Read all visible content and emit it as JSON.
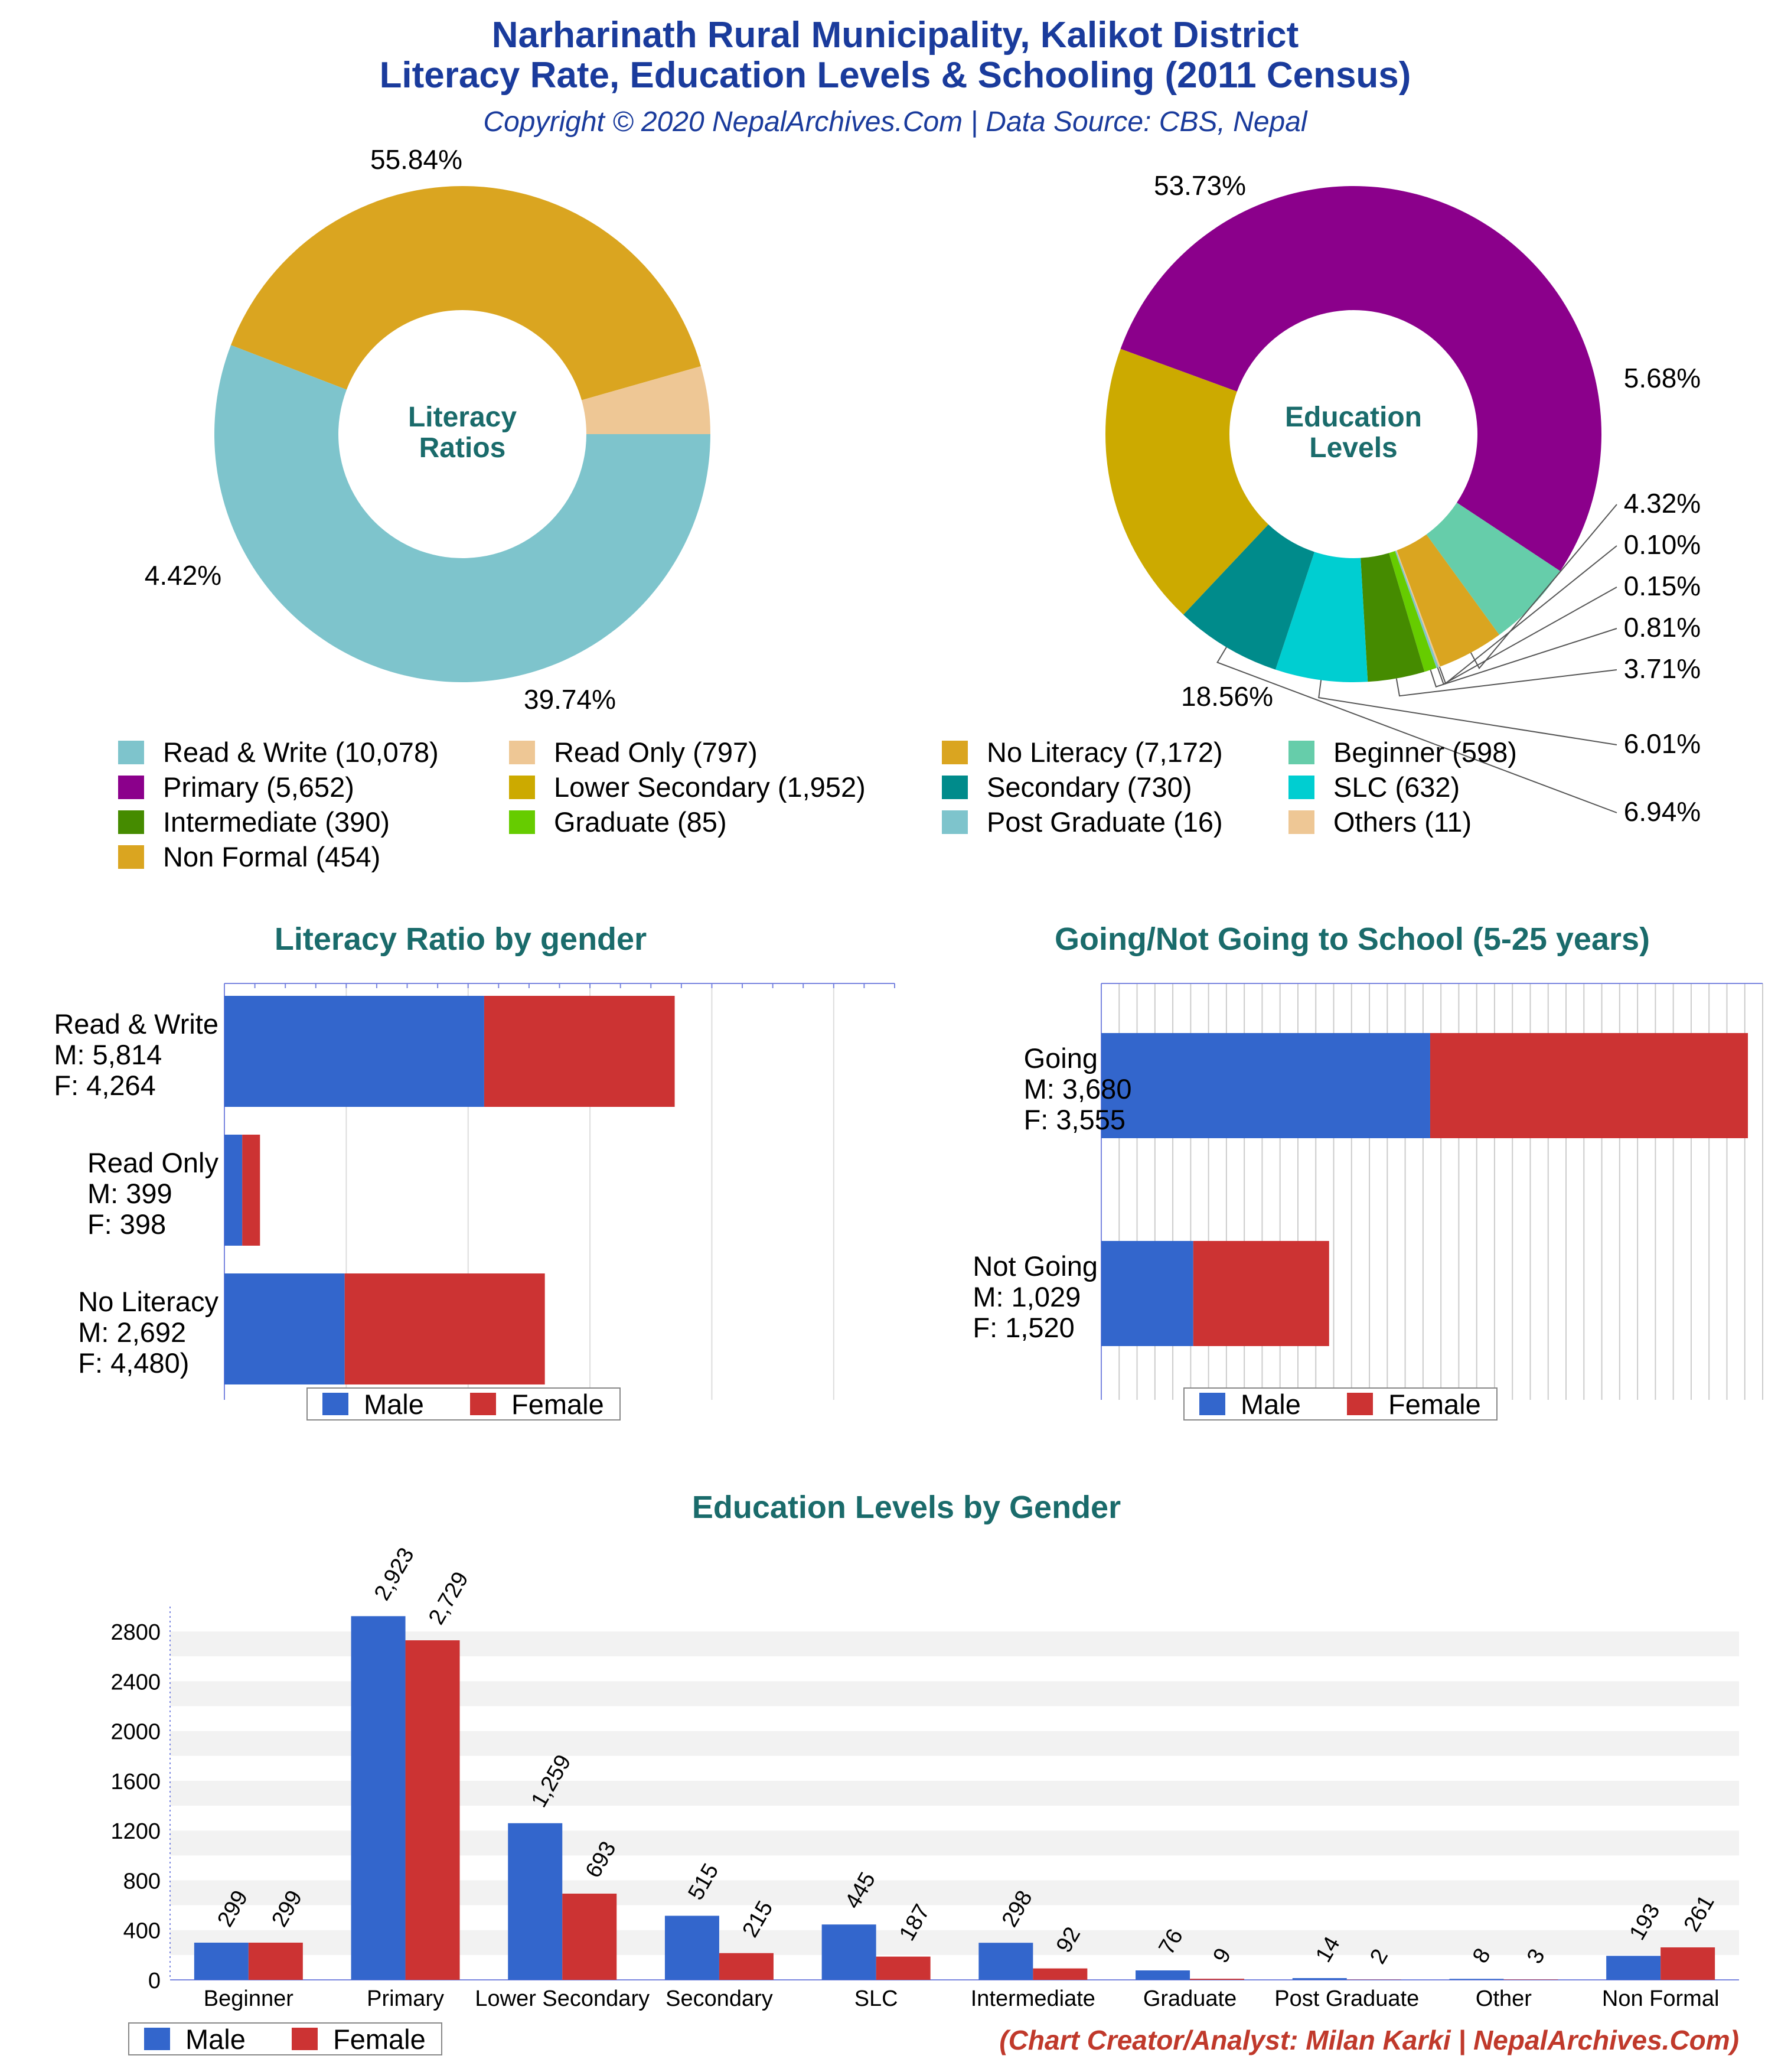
{
  "header": {
    "title_line1": "Narharinath Rural Municipality, Kalikot District",
    "title_line2": "Literacy Rate, Education Levels & Schooling (2011 Census)",
    "subtitle": "Copyright © 2020 NepalArchives.Com | Data Source: CBS, Nepal"
  },
  "colors": {
    "male": "#3366cc",
    "female": "#cc3333",
    "title": "#1a3b9c",
    "section": "#1a6b6b",
    "credit": "#c0392b"
  },
  "legend_labels": {
    "male": "Male",
    "female": "Female"
  },
  "chart_data": [
    {
      "type": "pie",
      "center_label": [
        "Literacy",
        "Ratios"
      ],
      "slices": [
        {
          "name": "Read & Write",
          "value": 10078,
          "percent_label": "55.84%",
          "color": "#7ec4cc"
        },
        {
          "name": "No Literacy",
          "value": 7172,
          "percent_label": "39.74%",
          "color": "#daa520"
        },
        {
          "name": "Read Only",
          "value": 797,
          "percent_label": "4.42%",
          "color": "#eec795"
        }
      ]
    },
    {
      "type": "pie",
      "center_label": [
        "Education",
        "Levels"
      ],
      "slices": [
        {
          "name": "Primary",
          "value": 5652,
          "percent_label": "53.73%",
          "color": "#8b008b"
        },
        {
          "name": "Beginner",
          "value": 598,
          "percent_label": "5.68%",
          "color": "#66cdaa"
        },
        {
          "name": "Non Formal",
          "value": 454,
          "percent_label": "4.32%",
          "color": "#daa520"
        },
        {
          "name": "Others",
          "value": 11,
          "percent_label": "0.10%",
          "color": "#eec795"
        },
        {
          "name": "Post Graduate",
          "value": 16,
          "percent_label": "0.15%",
          "color": "#7ec4cc"
        },
        {
          "name": "Graduate",
          "value": 85,
          "percent_label": "0.81%",
          "color": "#66cc00"
        },
        {
          "name": "Intermediate",
          "value": 390,
          "percent_label": "3.71%",
          "color": "#458b00"
        },
        {
          "name": "SLC",
          "value": 632,
          "percent_label": "6.01%",
          "color": "#00ced1"
        },
        {
          "name": "Secondary",
          "value": 730,
          "percent_label": "6.94%",
          "color": "#008b8b"
        },
        {
          "name": "Lower Secondary",
          "value": 1952,
          "percent_label": "18.56%",
          "color": "#ccaa00"
        }
      ]
    },
    {
      "type": "bar",
      "orientation": "horizontal",
      "stacked": true,
      "title": "Literacy Ratio by gender",
      "categories": [
        {
          "name": "Read & Write",
          "lines": [
            "Read & Write",
            "M: 5,814",
            "F: 4,264"
          ]
        },
        {
          "name": "Read Only",
          "lines": [
            "Read Only",
            "M: 399",
            "F: 398"
          ]
        },
        {
          "name": "No Literacy",
          "lines": [
            "No Literacy",
            "M: 2,692",
            "F: 4,480)"
          ]
        }
      ],
      "series": [
        {
          "name": "Male",
          "values": [
            5814,
            399,
            2692
          ]
        },
        {
          "name": "Female",
          "values": [
            4264,
            398,
            4480
          ]
        }
      ],
      "xlim": [
        0,
        15000
      ],
      "legend": "bottom"
    },
    {
      "type": "bar",
      "orientation": "horizontal",
      "stacked": true,
      "title": "Going/Not Going to School (5-25 years)",
      "categories": [
        {
          "name": "Going",
          "lines": [
            "Going",
            "M: 3,680",
            "F: 3,555"
          ]
        },
        {
          "name": "Not Going",
          "lines": [
            "Not Going",
            "M: 1,029",
            "F: 1,520"
          ]
        }
      ],
      "series": [
        {
          "name": "Male",
          "values": [
            3680,
            1029
          ]
        },
        {
          "name": "Female",
          "values": [
            3555,
            1520
          ]
        }
      ],
      "xlim": [
        0,
        7400
      ],
      "legend": "bottom"
    },
    {
      "type": "bar",
      "orientation": "vertical",
      "title": "Education Levels by Gender",
      "categories": [
        "Beginner",
        "Primary",
        "Lower Secondary",
        "Secondary",
        "SLC",
        "Intermediate",
        "Graduate",
        "Post Graduate",
        "Other",
        "Non Formal"
      ],
      "series": [
        {
          "name": "Male",
          "values": [
            299,
            2923,
            1259,
            515,
            445,
            298,
            76,
            14,
            8,
            193
          ],
          "labels": [
            "299",
            "2,923",
            "1,259",
            "515",
            "445",
            "298",
            "76",
            "14",
            "8",
            "193"
          ]
        },
        {
          "name": "Female",
          "values": [
            299,
            2729,
            693,
            215,
            187,
            92,
            9,
            2,
            3,
            261
          ],
          "labels": [
            "299",
            "2,729",
            "693",
            "215",
            "187",
            "92",
            "9",
            "2",
            "3",
            "261"
          ]
        }
      ],
      "yticks": [
        "0",
        "400",
        "800",
        "1200",
        "1600",
        "2000",
        "2400",
        "2800"
      ],
      "ylim": [
        0,
        3000
      ],
      "legend": "bottom-left"
    }
  ],
  "footer": {
    "credit": "(Chart Creator/Analyst: Milan Karki | NepalArchives.Com)"
  }
}
